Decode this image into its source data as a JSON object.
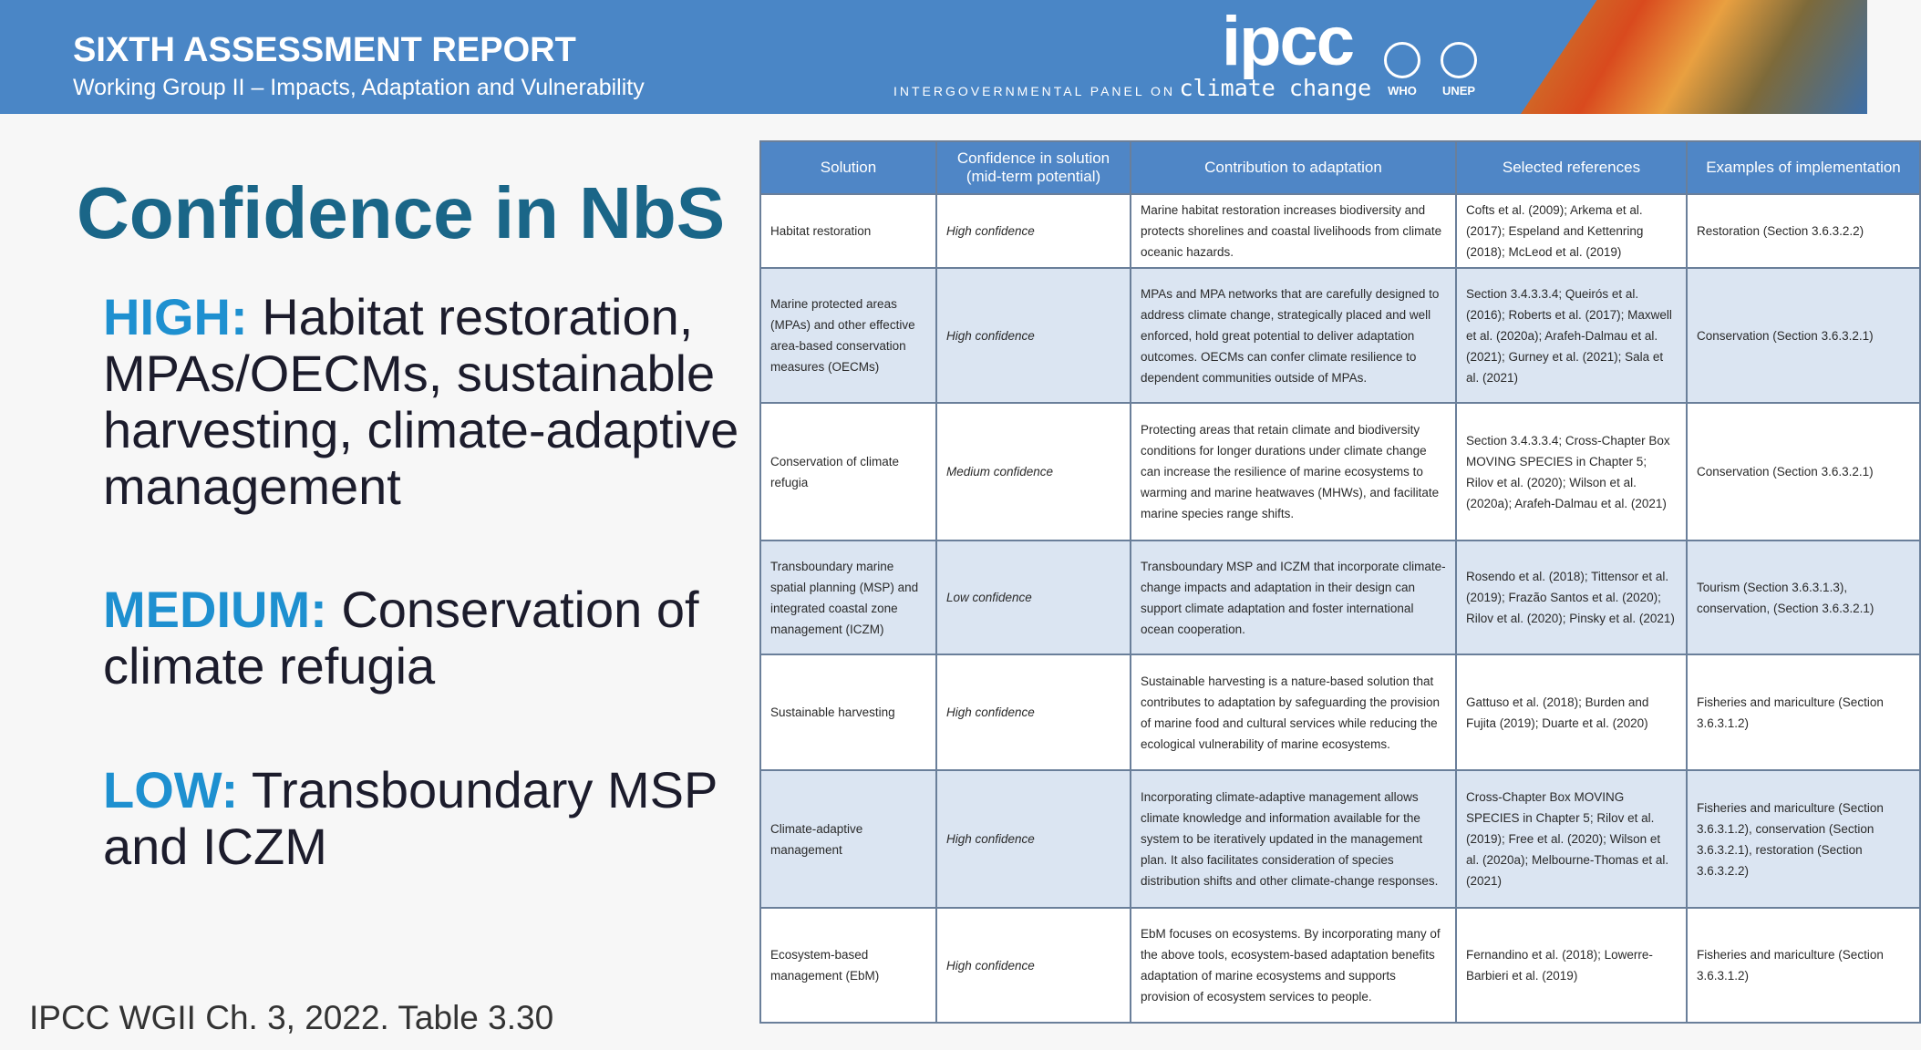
{
  "header": {
    "title": "SIXTH ASSESSMENT REPORT",
    "subtitle": "Working Group II – Impacts, Adaptation and Vulnerability",
    "logo": "ipcc",
    "org_prefix": "INTERGOVERNMENTAL PANEL ON",
    "org_suffix": "climate change",
    "partners": [
      "WHO",
      "UNEP"
    ]
  },
  "slide": {
    "title": "Confidence in NbS",
    "items": [
      {
        "level": "HIGH:",
        "text": "Habitat restoration, MPAs/OECMs, sustainable harvesting, climate-adaptive management"
      },
      {
        "level": "MEDIUM:",
        "text": "Conservation of climate refugia"
      },
      {
        "level": "LOW:",
        "text": "Transboundary MSP and ICZM"
      }
    ]
  },
  "table": {
    "columns": [
      "Solution",
      "Confidence in solution (mid-term potential)",
      "Contribution to adaptation",
      "Selected references",
      "Examples of implementation"
    ],
    "rows": [
      [
        "Habitat restoration",
        "High confidence",
        "Marine habitat restoration increases biodiversity and protects shorelines and coastal livelihoods from climate oceanic hazards.",
        "Cofts et al. (2009); Arkema et al. (2017); Espeland and Kettenring (2018); McLeod et al. (2019)",
        "Restoration (Section 3.6.3.2.2)"
      ],
      [
        "Marine protected areas (MPAs) and other effective area-based conservation measures (OECMs)",
        "High confidence",
        "MPAs and MPA networks that are carefully designed to address climate change, strategically placed and well enforced, hold great potential to deliver adaptation outcomes. OECMs can confer climate resilience to dependent communities outside of MPAs.",
        "Section 3.4.3.3.4; Queirós et al. (2016); Roberts et al. (2017); Maxwell et al. (2020a); Arafeh-Dalmau et al. (2021); Gurney et al. (2021); Sala et al. (2021)",
        "Conservation (Section 3.6.3.2.1)"
      ],
      [
        "Conservation of climate refugia",
        "Medium confidence",
        "Protecting areas that retain climate and biodiversity conditions for longer durations under climate change can increase the resilience of marine ecosystems to warming and marine heatwaves (MHWs), and facilitate marine species range shifts.",
        "Section 3.4.3.3.4; Cross-Chapter Box MOVING SPECIES in Chapter 5; Rilov et al. (2020); Wilson et al. (2020a); Arafeh-Dalmau et al. (2021)",
        "Conservation (Section 3.6.3.2.1)"
      ],
      [
        "Transboundary marine spatial planning (MSP) and integrated coastal zone management (ICZM)",
        "Low confidence",
        "Transboundary MSP and ICZM that incorporate climate-change impacts and adaptation in their design can support climate adaptation and foster international ocean cooperation.",
        "Rosendo et al. (2018); Tittensor et al. (2019); Frazão Santos et al. (2020); Rilov et al. (2020); Pinsky et al. (2021)",
        "Tourism (Section 3.6.3.1.3), conservation, (Section 3.6.3.2.1)"
      ],
      [
        "Sustainable harvesting",
        "High confidence",
        "Sustainable harvesting is a nature-based solution that contributes to adaptation by safeguarding the provision of marine food and cultural services while reducing the ecological vulnerability of marine ecosystems.",
        "Gattuso et al. (2018); Burden and Fujita (2019); Duarte et al. (2020)",
        "Fisheries and mariculture (Section 3.6.3.1.2)"
      ],
      [
        "Climate-adaptive management",
        "High confidence",
        "Incorporating climate-adaptive management allows climate knowledge and information available for the system to be iteratively updated in the management plan. It also facilitates consideration of species distribution shifts and other climate-change responses.",
        "Cross-Chapter Box MOVING SPECIES in Chapter 5; Rilov et al. (2019); Free et al. (2020); Wilson et al. (2020a); Melbourne-Thomas et al. (2021)",
        "Fisheries and mariculture (Section 3.6.3.1.2), conservation (Section 3.6.3.2.1), restoration (Section 3.6.3.2.2)"
      ],
      [
        "Ecosystem-based management (EbM)",
        "High confidence",
        "EbM focuses on ecosystems. By incorporating many of the above tools, ecosystem-based adaptation benefits adaptation of marine ecosystems and supports provision of ecosystem services to people.",
        "Fernandino et al. (2018); Lowerre-Barbieri et al. (2019)",
        "Fisheries and mariculture (Section 3.6.3.1.2)"
      ]
    ]
  },
  "footer": "IPCC WGII Ch. 3, 2022. Table 3.30"
}
